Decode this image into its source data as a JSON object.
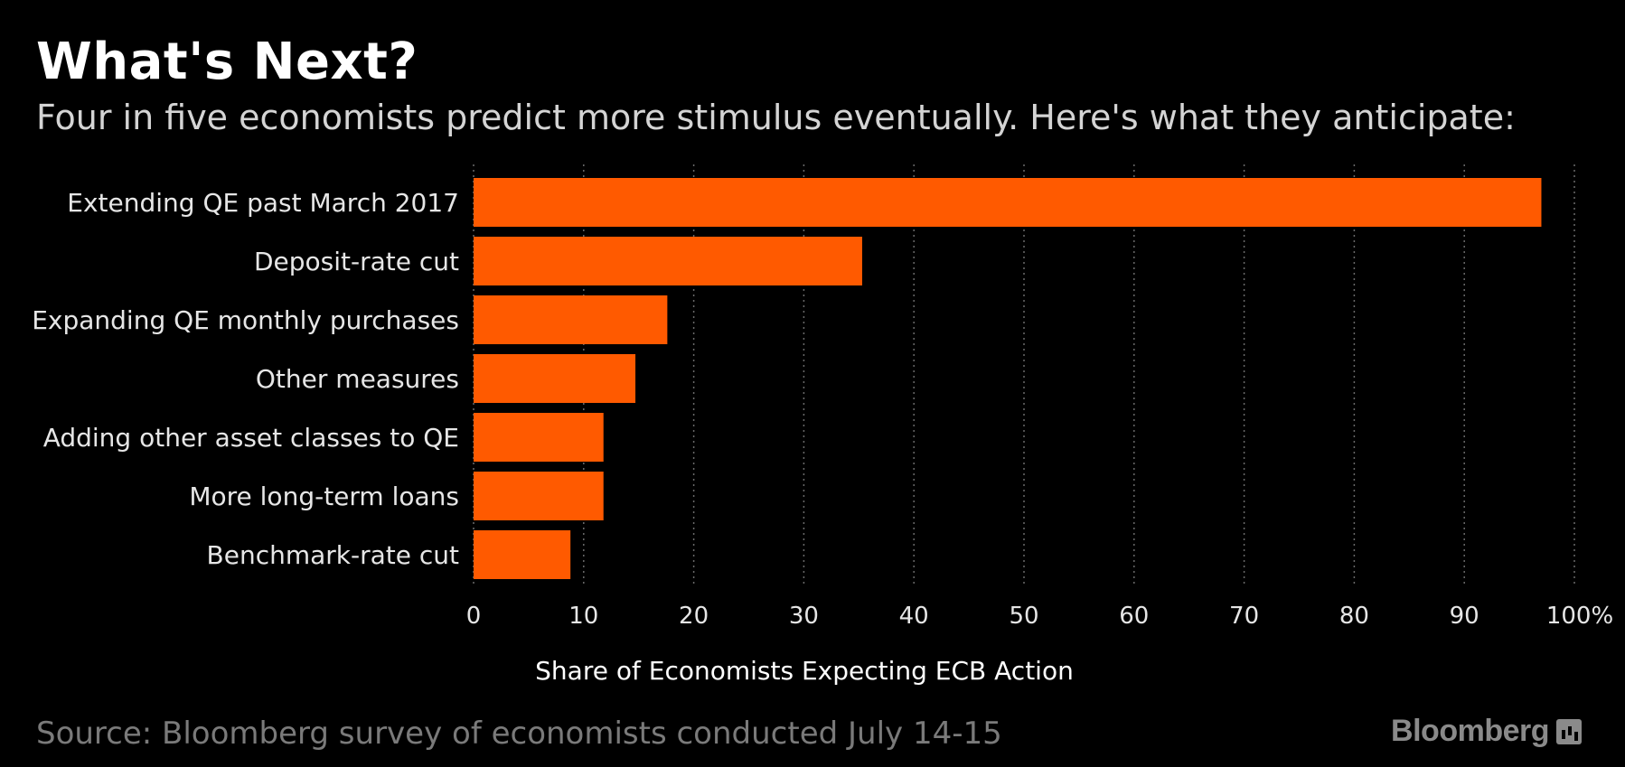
{
  "header": {
    "title": "What's Next?",
    "subtitle": "Four in five economists predict more stimulus eventually. Here's what they anticipate:"
  },
  "footer": {
    "source": "Source: Bloomberg survey of economists conducted July 14-15",
    "brand": "Bloomberg"
  },
  "colors": {
    "bar": "#ff5a00",
    "background": "#000000",
    "grid": "#6a6a6a"
  },
  "chart_data": {
    "type": "bar",
    "orientation": "horizontal",
    "categories": [
      "Extending QE past March 2017",
      "Deposit-rate cut",
      "Expanding QE monthly purchases",
      "Other measures",
      "Adding other asset classes to QE",
      "More long-term loans",
      "Benchmark-rate cut"
    ],
    "values": [
      97,
      35.3,
      17.6,
      14.7,
      11.8,
      11.8,
      8.8
    ],
    "xlim": [
      0,
      100
    ],
    "xticks": [
      0,
      10,
      20,
      30,
      40,
      50,
      60,
      70,
      80,
      90,
      100
    ],
    "xtick_labels": [
      "0",
      "10",
      "20",
      "30",
      "40",
      "50",
      "60",
      "70",
      "80",
      "90",
      "100%"
    ],
    "xlabel": "Share of Economists Expecting ECB Action",
    "grid": true
  }
}
